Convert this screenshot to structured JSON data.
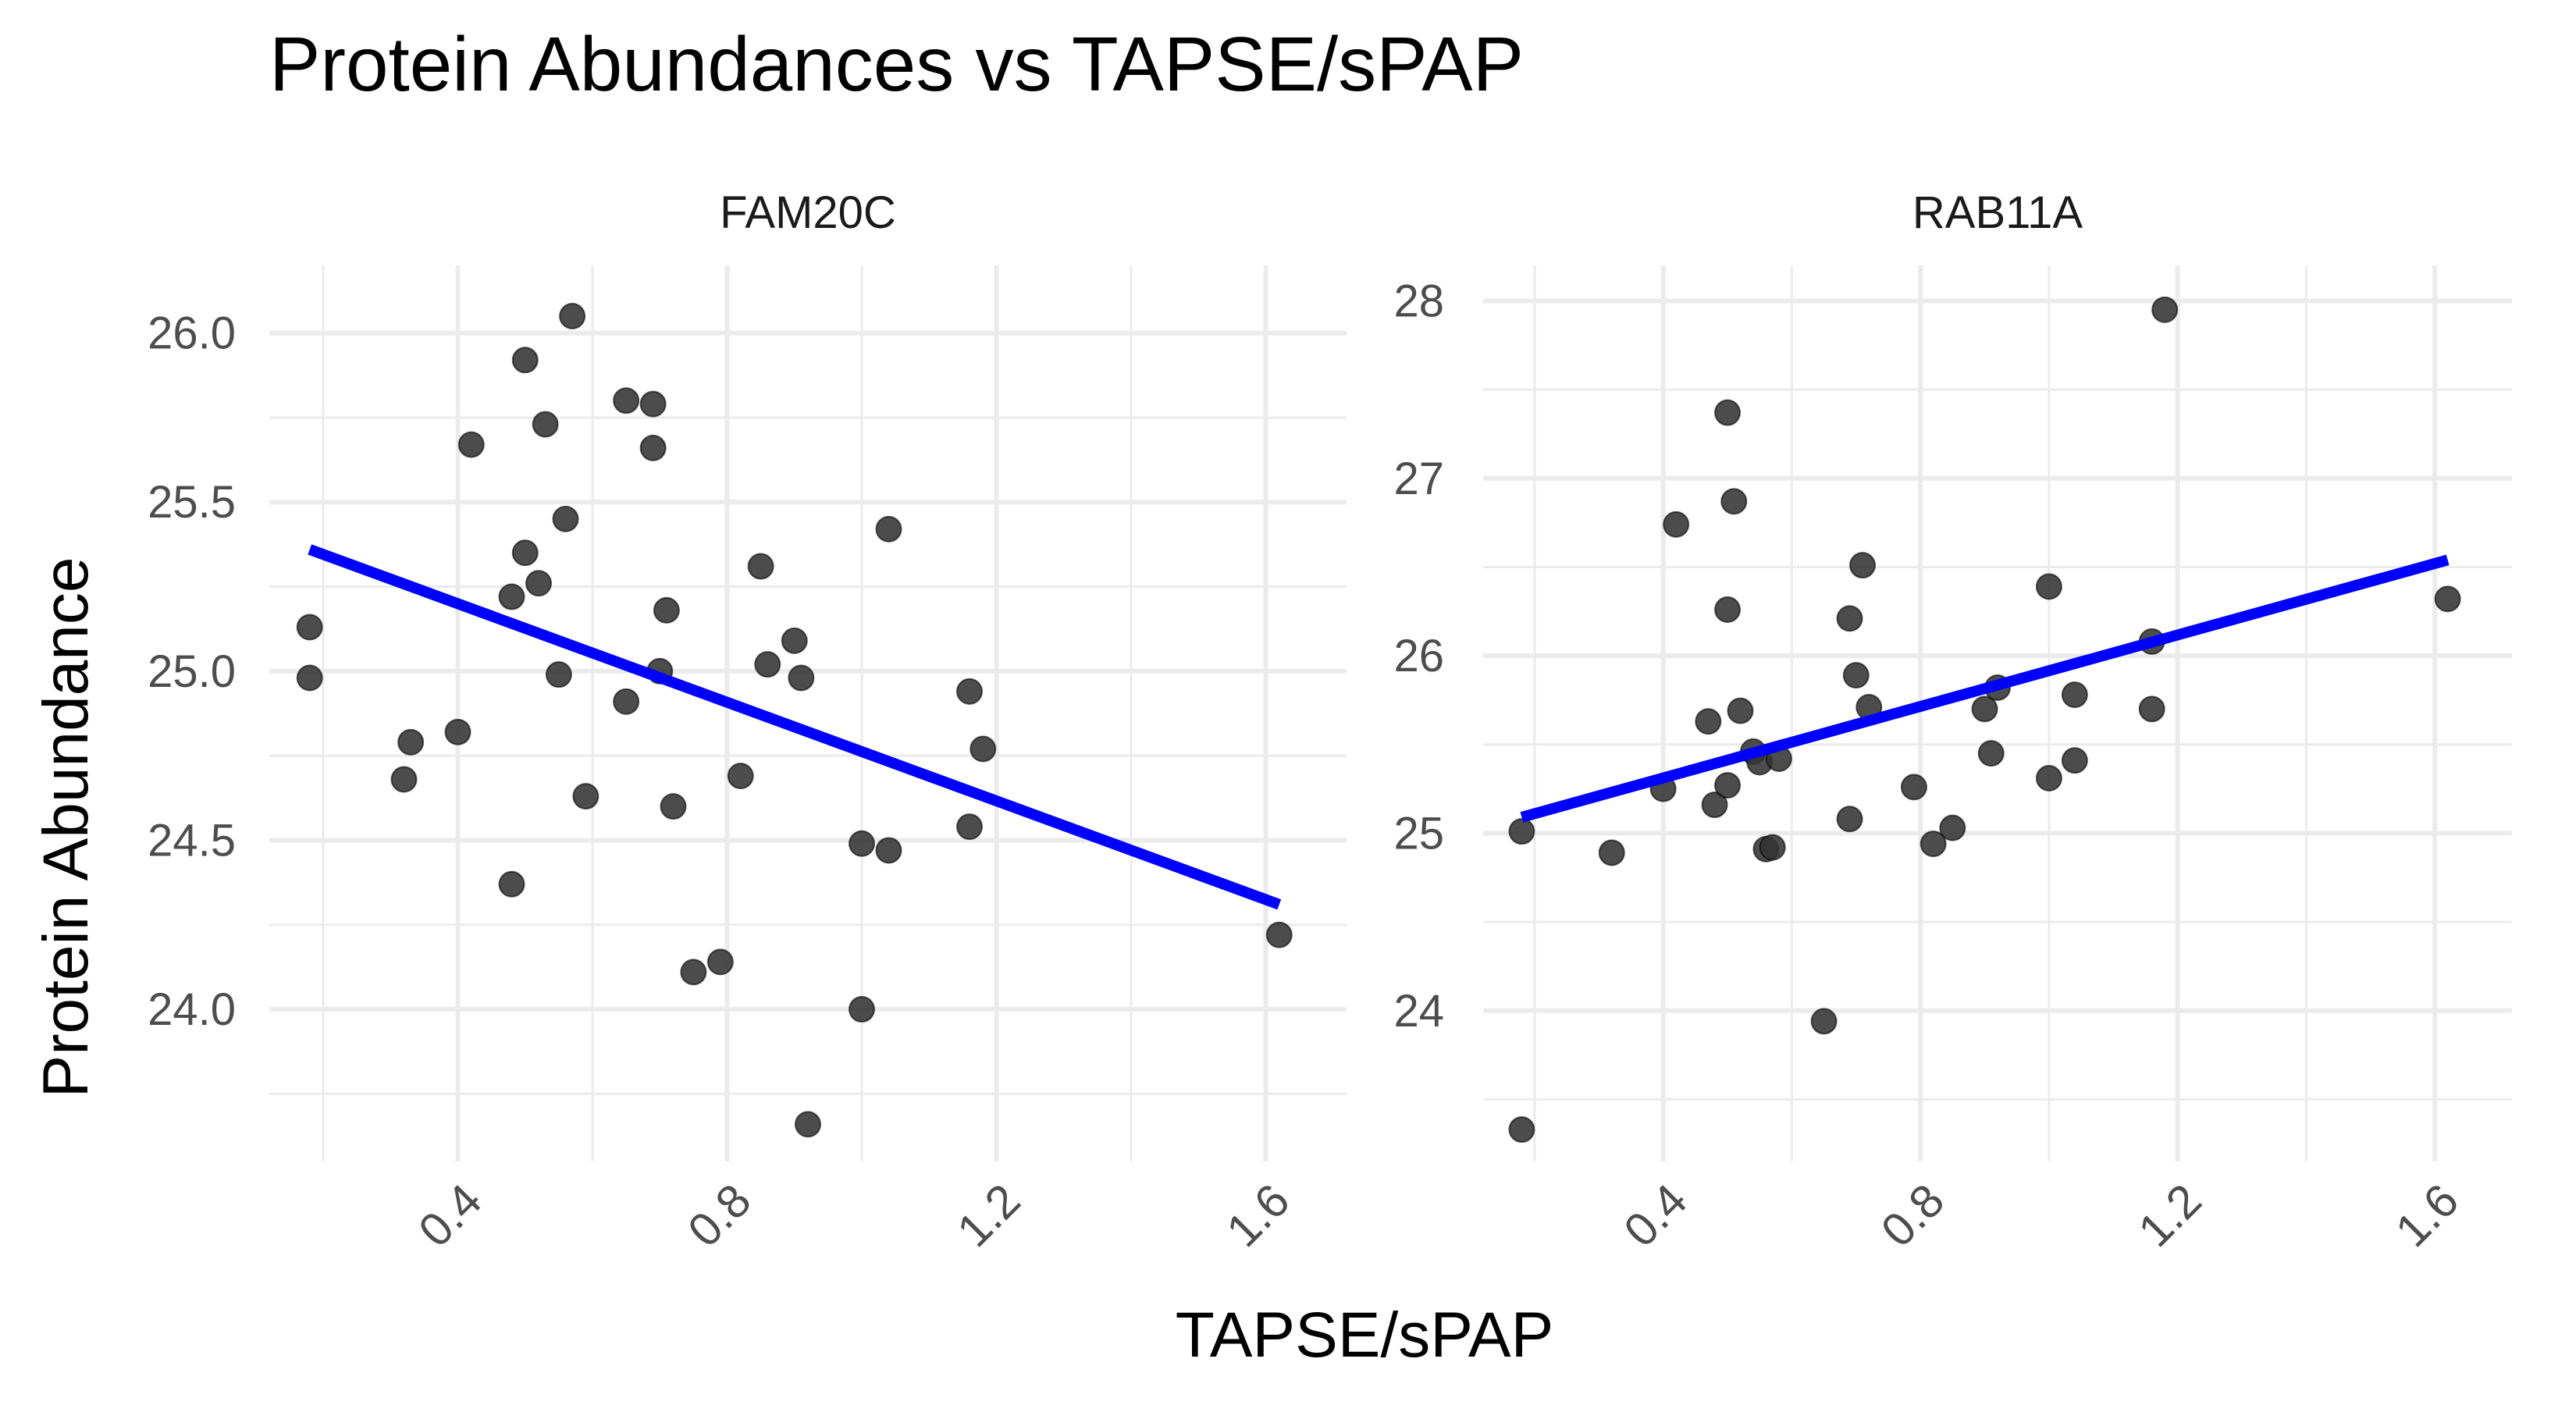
{
  "chart_data": {
    "type": "scatter",
    "title": "Protein Abundances vs TAPSE/sPAP",
    "xlabel": "TAPSE/sPAP",
    "ylabel": "Protein Abundance",
    "grid": true,
    "point_color": "#333333",
    "trend_color": "#0000ff",
    "xlim": [
      0.12,
      1.72
    ],
    "x_ticks": [
      0.4,
      0.8,
      1.2,
      1.6
    ],
    "x_tick_labels": [
      "0.4",
      "0.8",
      "1.2",
      "1.6"
    ],
    "panels": [
      {
        "name": "FAM20C",
        "ylim": [
          23.55,
          26.2
        ],
        "y_ticks": [
          24.0,
          24.5,
          25.0,
          25.5,
          26.0
        ],
        "y_tick_labels": [
          "24.0",
          "24.5",
          "25.0",
          "25.5",
          "26.0"
        ],
        "trend": {
          "x": [
            0.18,
            1.62
          ],
          "y": [
            25.36,
            24.31
          ]
        },
        "points": [
          {
            "x": 0.18,
            "y": 25.13
          },
          {
            "x": 0.18,
            "y": 24.98
          },
          {
            "x": 0.32,
            "y": 24.68
          },
          {
            "x": 0.33,
            "y": 24.79
          },
          {
            "x": 0.4,
            "y": 24.82
          },
          {
            "x": 0.42,
            "y": 25.67
          },
          {
            "x": 0.48,
            "y": 25.22
          },
          {
            "x": 0.48,
            "y": 24.37
          },
          {
            "x": 0.5,
            "y": 25.92
          },
          {
            "x": 0.5,
            "y": 25.35
          },
          {
            "x": 0.52,
            "y": 25.26
          },
          {
            "x": 0.53,
            "y": 25.73
          },
          {
            "x": 0.55,
            "y": 24.99
          },
          {
            "x": 0.56,
            "y": 25.45
          },
          {
            "x": 0.57,
            "y": 26.05
          },
          {
            "x": 0.59,
            "y": 24.63
          },
          {
            "x": 0.65,
            "y": 25.8
          },
          {
            "x": 0.65,
            "y": 24.91
          },
          {
            "x": 0.69,
            "y": 25.79
          },
          {
            "x": 0.69,
            "y": 25.66
          },
          {
            "x": 0.7,
            "y": 25.0
          },
          {
            "x": 0.71,
            "y": 25.18
          },
          {
            "x": 0.72,
            "y": 24.6
          },
          {
            "x": 0.75,
            "y": 24.11
          },
          {
            "x": 0.79,
            "y": 24.14
          },
          {
            "x": 0.82,
            "y": 24.69
          },
          {
            "x": 0.85,
            "y": 25.31
          },
          {
            "x": 0.86,
            "y": 25.02
          },
          {
            "x": 0.9,
            "y": 25.09
          },
          {
            "x": 0.91,
            "y": 24.98
          },
          {
            "x": 0.92,
            "y": 23.66
          },
          {
            "x": 1.0,
            "y": 24.49
          },
          {
            "x": 1.0,
            "y": 24.0
          },
          {
            "x": 1.04,
            "y": 25.42
          },
          {
            "x": 1.04,
            "y": 24.47
          },
          {
            "x": 1.16,
            "y": 24.94
          },
          {
            "x": 1.16,
            "y": 24.54
          },
          {
            "x": 1.18,
            "y": 24.77
          },
          {
            "x": 1.62,
            "y": 24.22
          }
        ]
      },
      {
        "name": "RAB11A",
        "ylim": [
          23.15,
          28.2
        ],
        "y_ticks": [
          24,
          25,
          26,
          27,
          28
        ],
        "y_tick_labels": [
          "24",
          "25",
          "26",
          "27",
          "28"
        ],
        "trend": {
          "x": [
            0.18,
            1.62
          ],
          "y": [
            25.09,
            26.54
          ]
        },
        "points": [
          {
            "x": 0.18,
            "y": 25.01
          },
          {
            "x": 0.18,
            "y": 23.33
          },
          {
            "x": 0.32,
            "y": 24.89
          },
          {
            "x": 0.4,
            "y": 25.25
          },
          {
            "x": 0.42,
            "y": 26.74
          },
          {
            "x": 0.47,
            "y": 25.63
          },
          {
            "x": 0.48,
            "y": 25.16
          },
          {
            "x": 0.5,
            "y": 27.37
          },
          {
            "x": 0.5,
            "y": 26.26
          },
          {
            "x": 0.5,
            "y": 25.27
          },
          {
            "x": 0.51,
            "y": 26.87
          },
          {
            "x": 0.52,
            "y": 25.69
          },
          {
            "x": 0.54,
            "y": 25.46
          },
          {
            "x": 0.55,
            "y": 25.4
          },
          {
            "x": 0.56,
            "y": 24.91
          },
          {
            "x": 0.57,
            "y": 24.92
          },
          {
            "x": 0.58,
            "y": 25.42
          },
          {
            "x": 0.65,
            "y": 23.94
          },
          {
            "x": 0.69,
            "y": 26.21
          },
          {
            "x": 0.69,
            "y": 25.08
          },
          {
            "x": 0.7,
            "y": 25.89
          },
          {
            "x": 0.71,
            "y": 26.51
          },
          {
            "x": 0.72,
            "y": 25.71
          },
          {
            "x": 0.79,
            "y": 25.26
          },
          {
            "x": 0.82,
            "y": 24.94
          },
          {
            "x": 0.85,
            "y": 25.03
          },
          {
            "x": 0.9,
            "y": 25.7
          },
          {
            "x": 0.91,
            "y": 25.45
          },
          {
            "x": 0.92,
            "y": 25.82
          },
          {
            "x": 1.0,
            "y": 26.39
          },
          {
            "x": 1.0,
            "y": 25.31
          },
          {
            "x": 1.04,
            "y": 25.78
          },
          {
            "x": 1.04,
            "y": 25.41
          },
          {
            "x": 1.16,
            "y": 26.08
          },
          {
            "x": 1.16,
            "y": 25.7
          },
          {
            "x": 1.18,
            "y": 27.95
          },
          {
            "x": 1.62,
            "y": 26.32
          }
        ]
      }
    ]
  }
}
